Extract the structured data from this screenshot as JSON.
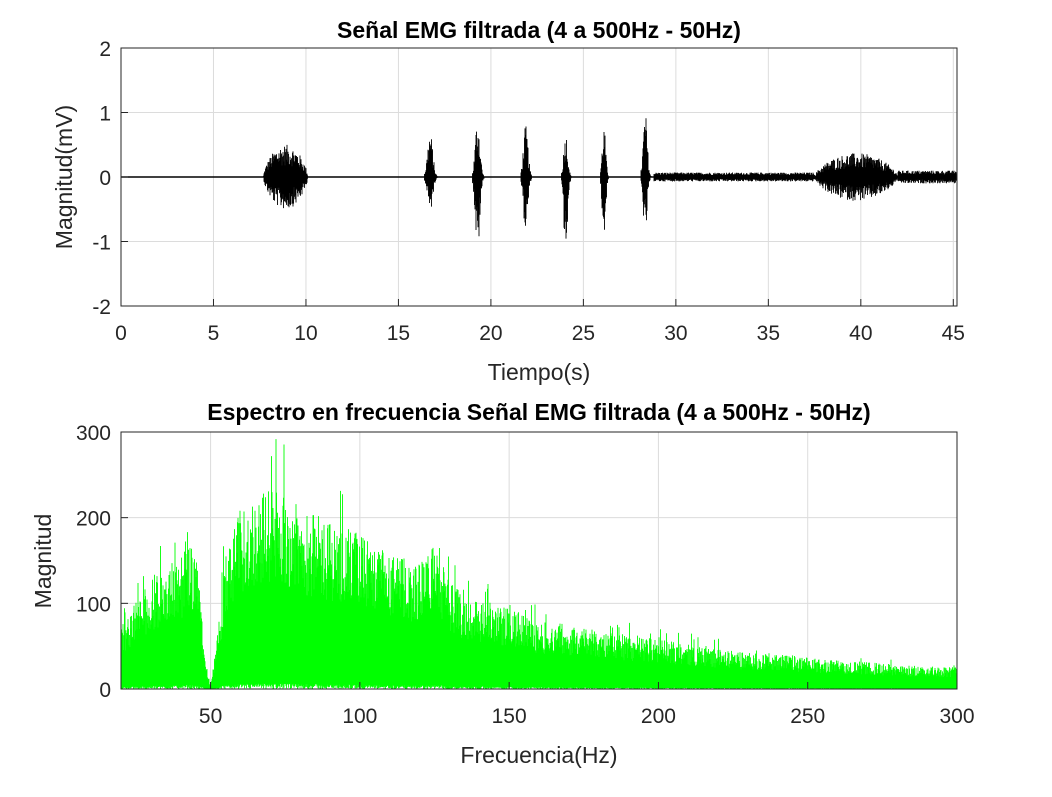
{
  "chart_data": [
    {
      "type": "line",
      "title": "Señal EMG filtrada  (4 a 500Hz - 50Hz)",
      "xlabel": "Tiempo(s)",
      "ylabel": "Magnitud(mV)",
      "xlim": [
        0,
        45.2
      ],
      "ylim": [
        -2,
        2
      ],
      "xticks": [
        "0",
        "5",
        "10",
        "15",
        "20",
        "25",
        "30",
        "35",
        "40",
        "45"
      ],
      "yticks": [
        "-2",
        "-1",
        "0",
        "1",
        "2"
      ],
      "grid": true,
      "line_color": "#000000",
      "series": [
        {
          "bursts": [
            {
              "start": 7.7,
              "end": 10.1,
              "peak": 0.5,
              "trough": -0.5
            },
            {
              "start": 16.4,
              "end": 17.3,
              "peak": 0.7,
              "trough": -0.55
            },
            {
              "start": 19.0,
              "end": 19.8,
              "peak": 0.93,
              "trough": -1.18
            },
            {
              "start": 21.6,
              "end": 22.4,
              "peak": 0.8,
              "trough": -0.85
            },
            {
              "start": 23.8,
              "end": 24.5,
              "peak": 0.7,
              "trough": -1.2
            },
            {
              "start": 25.9,
              "end": 26.5,
              "peak": 0.8,
              "trough": -0.98
            },
            {
              "start": 28.1,
              "end": 28.8,
              "peak": 1.0,
              "trough": -0.92
            },
            {
              "start": 37.5,
              "end": 42.0,
              "peak": 0.37,
              "trough": -0.37
            }
          ]
        }
      ]
    },
    {
      "type": "line",
      "title": "Espectro en frecuencia Señal EMG filtrada (4 a 500Hz - 50Hz)",
      "xlabel": "Frecuencia(Hz)",
      "ylabel": "Magnitud",
      "xlim": [
        20,
        300
      ],
      "ylim": [
        0,
        300
      ],
      "xticks": [
        "50",
        "100",
        "150",
        "200",
        "250",
        "300"
      ],
      "yticks": [
        "0",
        "100",
        "200",
        "300"
      ],
      "grid": true,
      "line_color": "#00ff00",
      "series": [
        {
          "envelope": {
            "x": [
              20,
              25,
              30,
              35,
              40,
              44,
              46,
              48,
              50,
              52,
              55,
              60,
              65,
              70,
              75,
              80,
              85,
              90,
              95,
              100,
              105,
              110,
              115,
              120,
              125,
              130,
              135,
              140,
              145,
              150,
              160,
              170,
              180,
              190,
              200,
              210,
              220,
              230,
              240,
              250,
              260,
              270,
              280,
              290,
              300
            ],
            "y": [
              70,
              100,
              120,
              135,
              150,
              160,
              130,
              40,
              3,
              50,
              150,
              200,
              215,
              225,
              220,
              200,
              195,
              185,
              180,
              175,
              160,
              150,
              145,
              140,
              165,
              120,
              105,
              100,
              95,
              90,
              75,
              70,
              65,
              60,
              55,
              50,
              45,
              40,
              40,
              35,
              32,
              30,
              27,
              25,
              25
            ]
          }
        }
      ]
    }
  ]
}
